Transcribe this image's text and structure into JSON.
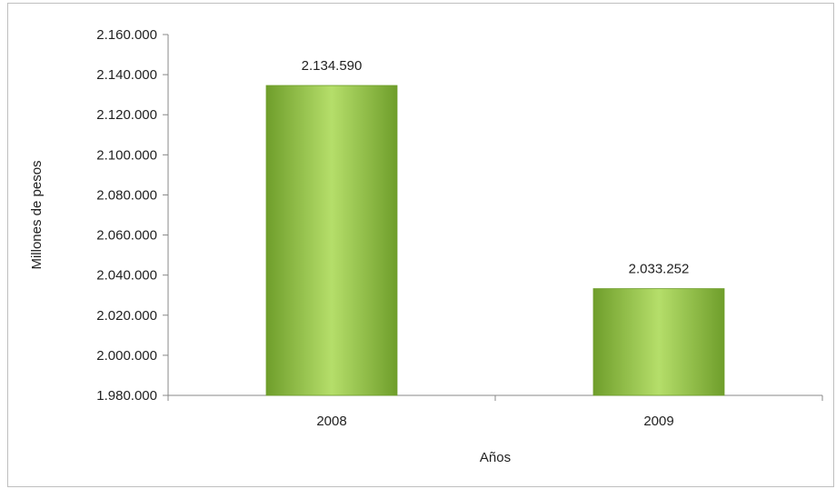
{
  "chart_data": {
    "type": "bar",
    "categories": [
      "2008",
      "2009"
    ],
    "series": [
      {
        "values": [
          2134590,
          2033252
        ]
      }
    ],
    "data_labels": [
      "2.134.590",
      "2.033.252"
    ],
    "title": "",
    "xlabel": "Años",
    "ylabel": "Millones de pesos",
    "ylim": [
      1980000,
      2160000
    ],
    "y_ticks": [
      1980000,
      2000000,
      2020000,
      2040000,
      2060000,
      2080000,
      2100000,
      2120000,
      2140000,
      2160000
    ],
    "y_tick_labels": [
      "1.980.000",
      "2.000.000",
      "2.020.000",
      "2.040.000",
      "2.060.000",
      "2.080.000",
      "2.100.000",
      "2.120.000",
      "2.140.000",
      "2.160.000"
    ],
    "grid": false,
    "legend": "none",
    "bar_color": "#8cc63f",
    "bar_color_light": "#b5de6a",
    "bar_color_dark": "#6f9e2b"
  }
}
